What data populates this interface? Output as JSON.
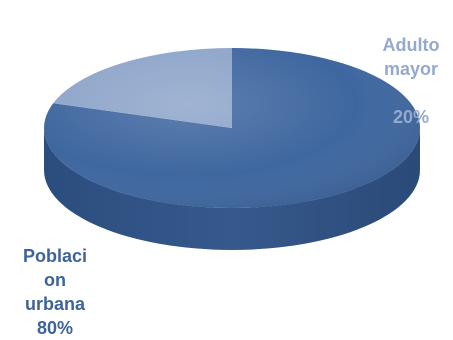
{
  "chart_data": {
    "type": "pie",
    "style": "3d",
    "slices": [
      {
        "label": "Poblaci\non\nurbana",
        "value": 80,
        "value_label": "80%",
        "color": "#3f679f",
        "label_color": "#3d6399"
      },
      {
        "label": "Adulto\nmayor",
        "value": 20,
        "value_label": "20%",
        "color": "#8ea5ca",
        "label_color": "#93a9cd"
      }
    ]
  }
}
